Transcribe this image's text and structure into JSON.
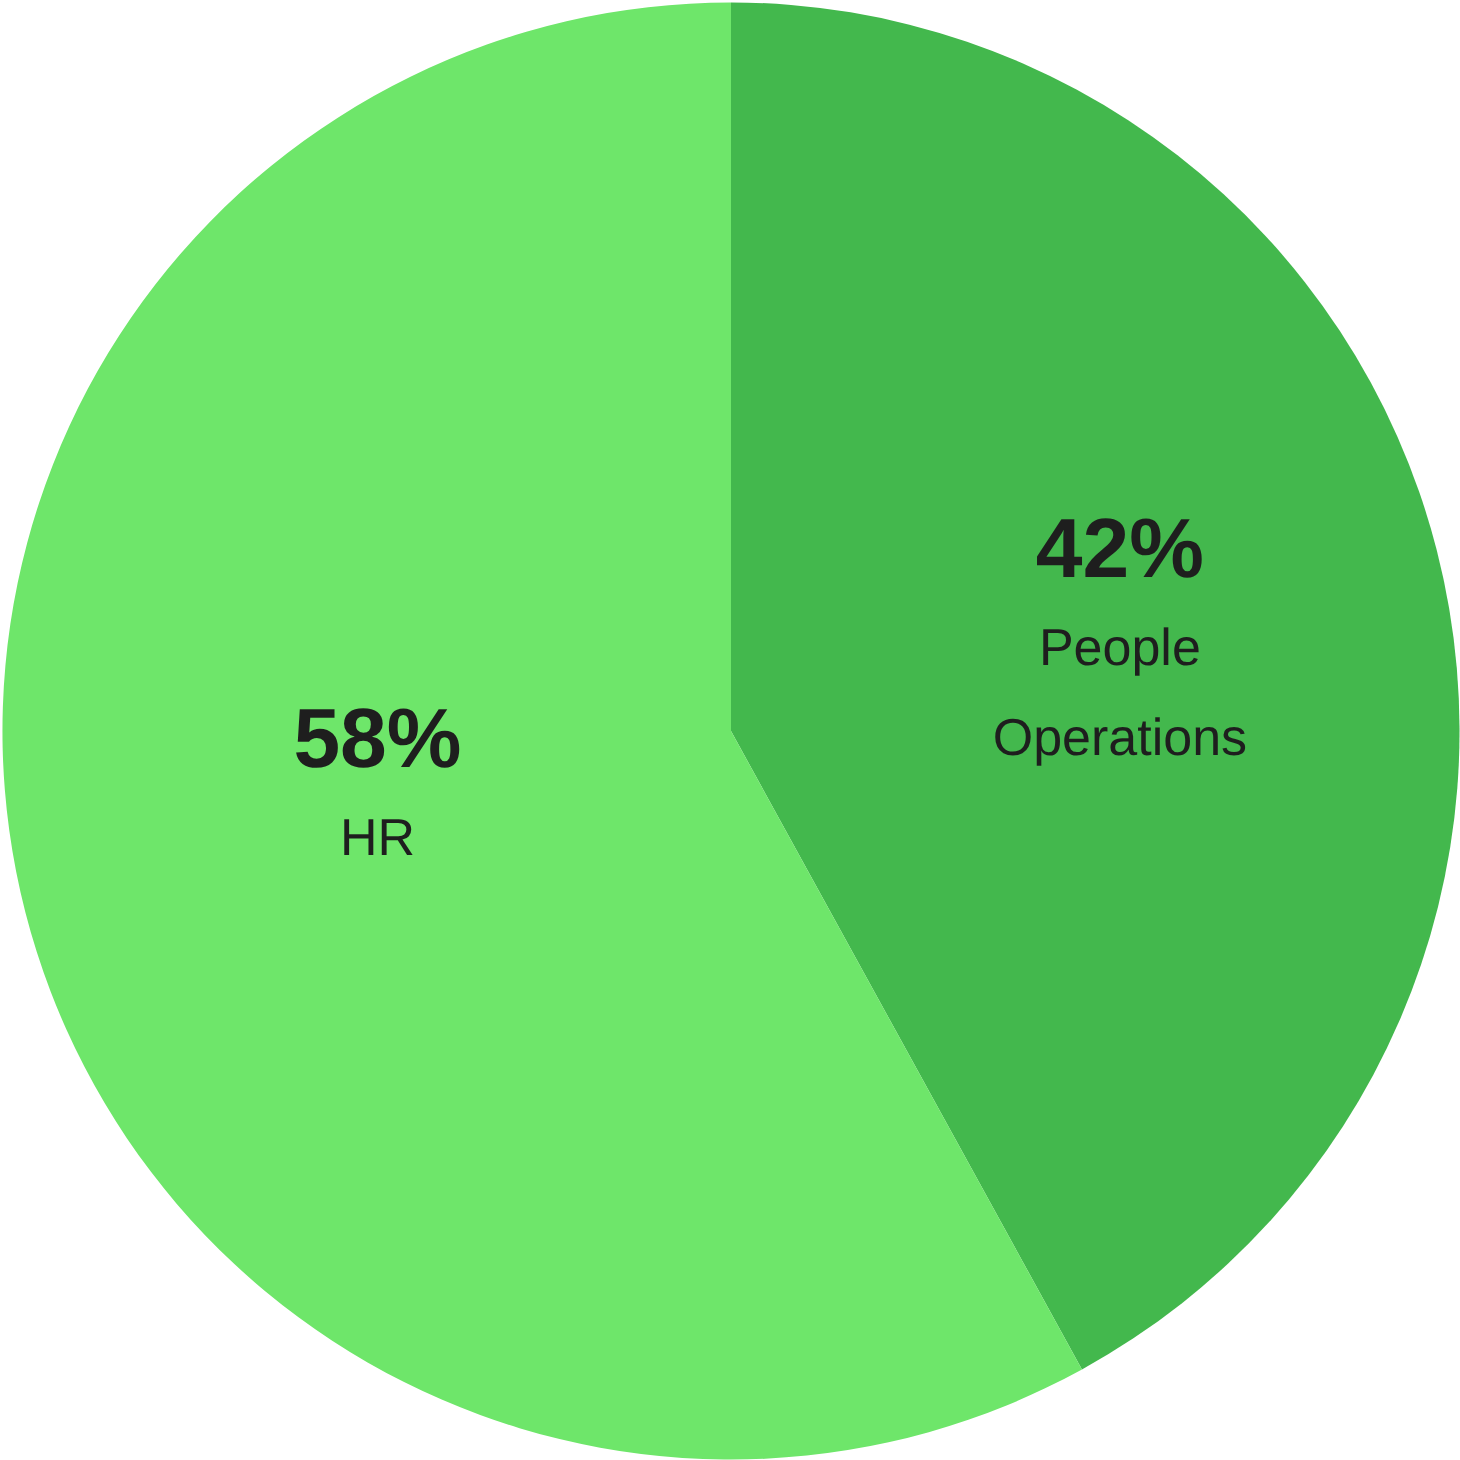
{
  "chart_data": {
    "type": "pie",
    "categories": [
      "People Operations",
      "HR"
    ],
    "values": [
      42,
      58
    ],
    "colors": [
      "#43b84d",
      "#6ee66a"
    ],
    "value_labels": [
      "42%",
      "58%"
    ]
  }
}
